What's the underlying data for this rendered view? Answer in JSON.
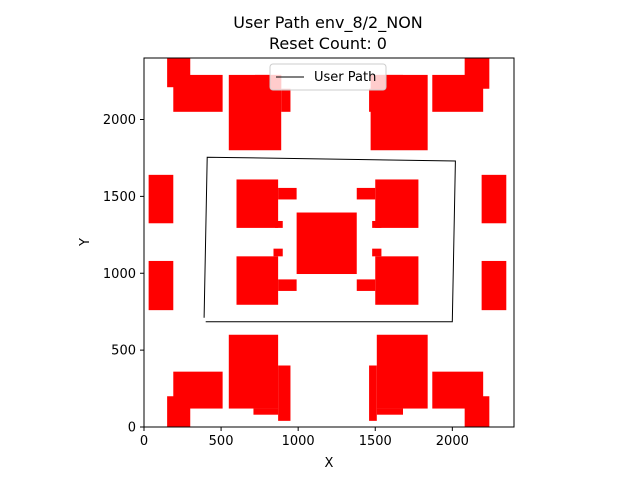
{
  "chart_data": {
    "type": "line",
    "title": "User Path env_8/2_NON",
    "subtitle": "Reset Count: 0",
    "xlabel": "X",
    "ylabel": "Y",
    "xlim": [
      0,
      2400
    ],
    "ylim": [
      0,
      2400
    ],
    "xticks": [
      0,
      500,
      1000,
      1500,
      2000
    ],
    "yticks": [
      0,
      500,
      1000,
      1500,
      2000
    ],
    "legend": {
      "labels": [
        "User Path"
      ],
      "location": "upper center"
    },
    "colors": {
      "path": "#000000",
      "obstacle": "#ff0000"
    },
    "series": [
      {
        "name": "User Path",
        "x": [
          390,
          410,
          2020,
          2000,
          400
        ],
        "y": [
          710,
          1755,
          1730,
          685,
          685
        ]
      }
    ],
    "obstacles": [
      {
        "x0": 150,
        "x1": 300,
        "y0": 2210,
        "y1": 2400
      },
      {
        "x0": 190,
        "x1": 510,
        "y0": 2050,
        "y1": 2290
      },
      {
        "x0": 550,
        "x1": 890,
        "y0": 1800,
        "y1": 2290
      },
      {
        "x0": 720,
        "x1": 890,
        "y0": 2200,
        "y1": 2290
      },
      {
        "x0": 890,
        "x1": 950,
        "y0": 2050,
        "y1": 2200
      },
      {
        "x0": 1470,
        "x1": 1840,
        "y0": 1800,
        "y1": 2290
      },
      {
        "x0": 1460,
        "x1": 1510,
        "y0": 2050,
        "y1": 2200
      },
      {
        "x0": 1510,
        "x1": 1680,
        "y0": 2200,
        "y1": 2290
      },
      {
        "x0": 1870,
        "x1": 2200,
        "y0": 2050,
        "y1": 2290
      },
      {
        "x0": 2080,
        "x1": 2240,
        "y0": 2200,
        "y1": 2400
      },
      {
        "x0": 30,
        "x1": 190,
        "y0": 1325,
        "y1": 1640
      },
      {
        "x0": 2190,
        "x1": 2350,
        "y0": 1325,
        "y1": 1640
      },
      {
        "x0": 30,
        "x1": 190,
        "y0": 760,
        "y1": 1080
      },
      {
        "x0": 2190,
        "x1": 2350,
        "y0": 760,
        "y1": 1080
      },
      {
        "x0": 600,
        "x1": 870,
        "y0": 1295,
        "y1": 1610
      },
      {
        "x0": 870,
        "x1": 990,
        "y0": 1480,
        "y1": 1555
      },
      {
        "x0": 1380,
        "x1": 1500,
        "y0": 1480,
        "y1": 1555
      },
      {
        "x0": 1500,
        "x1": 1780,
        "y0": 1295,
        "y1": 1610
      },
      {
        "x0": 850,
        "x1": 900,
        "y0": 1295,
        "y1": 1340
      },
      {
        "x0": 1480,
        "x1": 1540,
        "y0": 1295,
        "y1": 1340
      },
      {
        "x0": 990,
        "x1": 1380,
        "y0": 995,
        "y1": 1395
      },
      {
        "x0": 600,
        "x1": 870,
        "y0": 795,
        "y1": 1110
      },
      {
        "x0": 870,
        "x1": 990,
        "y0": 885,
        "y1": 960
      },
      {
        "x0": 1380,
        "x1": 1500,
        "y0": 885,
        "y1": 960
      },
      {
        "x0": 1500,
        "x1": 1780,
        "y0": 795,
        "y1": 1110
      },
      {
        "x0": 840,
        "x1": 900,
        "y0": 1110,
        "y1": 1160
      },
      {
        "x0": 1480,
        "x1": 1540,
        "y0": 1110,
        "y1": 1160
      },
      {
        "x0": 550,
        "x1": 870,
        "y0": 120,
        "y1": 600
      },
      {
        "x0": 710,
        "x1": 870,
        "y0": 80,
        "y1": 120
      },
      {
        "x0": 870,
        "x1": 950,
        "y0": 40,
        "y1": 400
      },
      {
        "x0": 1460,
        "x1": 1510,
        "y0": 40,
        "y1": 400
      },
      {
        "x0": 1510,
        "x1": 1840,
        "y0": 120,
        "y1": 600
      },
      {
        "x0": 1510,
        "x1": 1680,
        "y0": 80,
        "y1": 120
      },
      {
        "x0": 190,
        "x1": 510,
        "y0": 120,
        "y1": 360
      },
      {
        "x0": 150,
        "x1": 300,
        "y0": 0,
        "y1": 200
      },
      {
        "x0": 1870,
        "x1": 2200,
        "y0": 120,
        "y1": 360
      },
      {
        "x0": 2080,
        "x1": 2240,
        "y0": 0,
        "y1": 200
      }
    ]
  }
}
